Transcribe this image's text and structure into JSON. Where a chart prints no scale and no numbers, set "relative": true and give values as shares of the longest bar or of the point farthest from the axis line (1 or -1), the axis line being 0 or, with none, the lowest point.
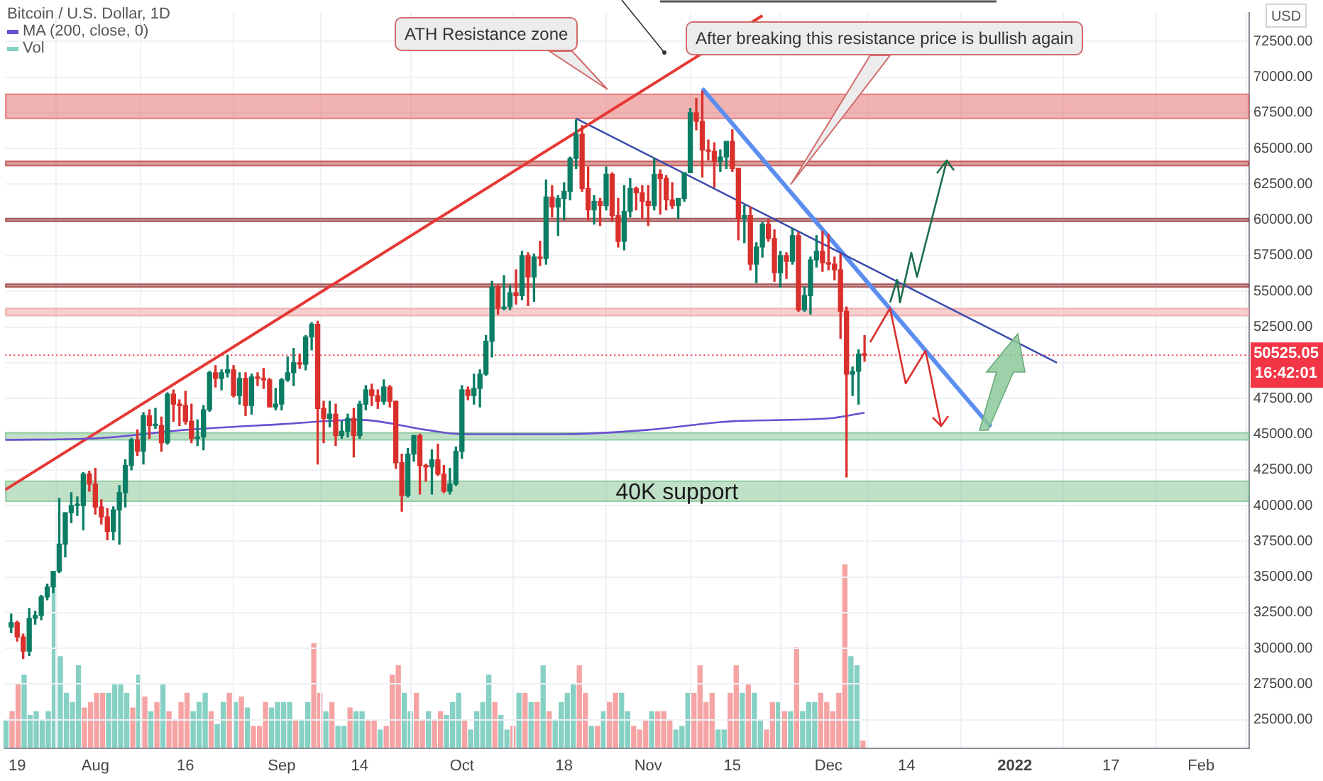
{
  "chart_data": [
    {
      "type": "candlestick",
      "title": "Bitcoin / U.S. Dollar, 1D",
      "ylabel": "USD",
      "x": [
        "2021-07-18",
        "2021-07-19",
        "2021-07-20",
        "2021-07-21",
        "2021-07-22",
        "2021-07-23",
        "2021-07-24",
        "2021-07-25",
        "2021-07-26",
        "2021-07-27",
        "2021-07-28",
        "2021-07-29",
        "2021-07-30",
        "2021-07-31",
        "2021-08-01",
        "2021-08-02",
        "2021-08-03",
        "2021-08-04",
        "2021-08-05",
        "2021-08-06",
        "2021-08-07",
        "2021-08-08",
        "2021-08-09",
        "2021-08-10",
        "2021-08-11",
        "2021-08-12",
        "2021-08-13",
        "2021-08-14",
        "2021-08-15",
        "2021-08-16",
        "2021-08-17",
        "2021-08-18",
        "2021-08-19",
        "2021-08-20",
        "2021-08-21",
        "2021-08-22",
        "2021-08-23",
        "2021-08-24",
        "2021-08-25",
        "2021-08-26",
        "2021-08-27",
        "2021-08-28",
        "2021-08-29",
        "2021-08-30",
        "2021-08-31",
        "2021-09-01",
        "2021-09-02",
        "2021-09-03",
        "2021-09-04",
        "2021-09-05",
        "2021-09-06",
        "2021-09-07",
        "2021-09-08",
        "2021-09-09",
        "2021-09-10",
        "2021-09-11",
        "2021-09-12",
        "2021-09-13",
        "2021-09-14",
        "2021-09-15",
        "2021-09-16",
        "2021-09-17",
        "2021-09-18",
        "2021-09-19",
        "2021-09-20",
        "2021-09-21",
        "2021-09-22",
        "2021-09-23",
        "2021-09-24",
        "2021-09-25",
        "2021-09-26",
        "2021-09-27",
        "2021-09-28",
        "2021-09-29",
        "2021-09-30",
        "2021-10-01",
        "2021-10-02",
        "2021-10-03",
        "2021-10-04",
        "2021-10-05",
        "2021-10-06",
        "2021-10-07",
        "2021-10-08",
        "2021-10-09",
        "2021-10-10",
        "2021-10-11",
        "2021-10-12",
        "2021-10-13",
        "2021-10-14",
        "2021-10-15",
        "2021-10-16",
        "2021-10-17",
        "2021-10-18",
        "2021-10-19",
        "2021-10-20",
        "2021-10-21",
        "2021-10-22",
        "2021-10-23",
        "2021-10-24",
        "2021-10-25",
        "2021-10-26",
        "2021-10-27",
        "2021-10-28",
        "2021-10-29",
        "2021-10-30",
        "2021-10-31",
        "2021-11-01",
        "2021-11-02",
        "2021-11-03",
        "2021-11-04",
        "2021-11-05",
        "2021-11-06",
        "2021-11-07",
        "2021-11-08",
        "2021-11-09",
        "2021-11-10",
        "2021-11-11",
        "2021-11-12",
        "2021-11-13",
        "2021-11-14",
        "2021-11-15",
        "2021-11-16",
        "2021-11-17",
        "2021-11-18",
        "2021-11-19",
        "2021-11-20",
        "2021-11-21",
        "2021-11-22",
        "2021-11-23",
        "2021-11-24",
        "2021-11-25",
        "2021-11-26",
        "2021-11-27",
        "2021-11-28",
        "2021-11-29",
        "2021-11-30",
        "2021-12-01",
        "2021-12-02",
        "2021-12-03",
        "2021-12-04",
        "2021-12-05",
        "2021-12-06",
        "2021-12-07"
      ],
      "ohlc": [
        [
          31500,
          32400,
          31100,
          31800
        ],
        [
          31800,
          31900,
          30500,
          30800
        ],
        [
          30800,
          31000,
          29300,
          29800
        ],
        [
          29800,
          32800,
          29500,
          32100
        ],
        [
          32100,
          32600,
          31700,
          32300
        ],
        [
          32300,
          33700,
          32000,
          33600
        ],
        [
          33600,
          34500,
          33400,
          34300
        ],
        [
          34300,
          35400,
          33900,
          35400
        ],
        [
          35400,
          40500,
          35300,
          37300
        ],
        [
          37300,
          39500,
          36400,
          39500
        ],
        [
          39500,
          40900,
          38800,
          40000
        ],
        [
          40000,
          40600,
          39300,
          40000
        ],
        [
          40000,
          42300,
          38300,
          42200
        ],
        [
          42200,
          42400,
          41000,
          41500
        ],
        [
          41500,
          42600,
          39400,
          39900
        ],
        [
          39900,
          40400,
          38700,
          39200
        ],
        [
          39200,
          39800,
          37600,
          38200
        ],
        [
          38200,
          39900,
          37600,
          39700
        ],
        [
          39700,
          41400,
          37300,
          40900
        ],
        [
          40900,
          43200,
          39900,
          42800
        ],
        [
          42800,
          44700,
          42500,
          44600
        ],
        [
          44600,
          45300,
          43500,
          43800
        ],
        [
          43800,
          46500,
          42900,
          46300
        ],
        [
          46300,
          46700,
          44700,
          45600
        ],
        [
          45600,
          46800,
          45400,
          45600
        ],
        [
          45600,
          46200,
          43800,
          44400
        ],
        [
          44400,
          47900,
          44300,
          47800
        ],
        [
          47800,
          48100,
          45900,
          47100
        ],
        [
          47100,
          47400,
          45600,
          47000
        ],
        [
          47000,
          48000,
          45700,
          45900
        ],
        [
          45900,
          47100,
          44400,
          44700
        ],
        [
          44700,
          46000,
          44200,
          44800
        ],
        [
          44800,
          47000,
          43900,
          46700
        ],
        [
          46700,
          49400,
          46600,
          49300
        ],
        [
          49300,
          49800,
          48300,
          48900
        ],
        [
          48900,
          49500,
          48100,
          49300
        ],
        [
          49300,
          50500,
          49000,
          49500
        ],
        [
          49500,
          49800,
          47600,
          47700
        ],
        [
          47700,
          49300,
          47100,
          48900
        ],
        [
          48900,
          49300,
          46300,
          47000
        ],
        [
          47000,
          49200,
          46400,
          49000
        ],
        [
          49000,
          49300,
          48400,
          48900
        ],
        [
          48900,
          49600,
          48200,
          48800
        ],
        [
          48800,
          48900,
          46900,
          46900
        ],
        [
          46900,
          48200,
          46700,
          47100
        ],
        [
          47100,
          48900,
          46700,
          48800
        ],
        [
          48800,
          50400,
          48700,
          49300
        ],
        [
          49300,
          51000,
          48400,
          50000
        ],
        [
          50000,
          50600,
          49600,
          49900
        ],
        [
          49900,
          51900,
          49500,
          51800
        ],
        [
          51800,
          52800,
          50900,
          52700
        ],
        [
          52700,
          52900,
          42900,
          46800
        ],
        [
          46800,
          47300,
          44400,
          46100
        ],
        [
          46100,
          47300,
          45500,
          46400
        ],
        [
          46400,
          47100,
          44200,
          44900
        ],
        [
          44900,
          45900,
          44700,
          45200
        ],
        [
          45200,
          46400,
          44800,
          46100
        ],
        [
          46100,
          46800,
          43400,
          44900
        ],
        [
          44900,
          47300,
          44700,
          47100
        ],
        [
          47100,
          48400,
          46700,
          48100
        ],
        [
          48100,
          48500,
          47000,
          47700
        ],
        [
          47700,
          48100,
          46800,
          47300
        ],
        [
          47300,
          48800,
          47100,
          48300
        ],
        [
          48300,
          48400,
          46900,
          47300
        ],
        [
          47300,
          47300,
          42600,
          43000
        ],
        [
          43000,
          43600,
          39600,
          40700
        ],
        [
          40700,
          44000,
          40600,
          43600
        ],
        [
          43600,
          44900,
          43100,
          44900
        ],
        [
          44900,
          45000,
          40800,
          42800
        ],
        [
          42800,
          42900,
          41700,
          42700
        ],
        [
          42700,
          43900,
          40800,
          43200
        ],
        [
          43200,
          44300,
          42100,
          42200
        ],
        [
          42200,
          42800,
          40900,
          41000
        ],
        [
          41000,
          42600,
          40800,
          41500
        ],
        [
          41500,
          44100,
          41400,
          43800
        ],
        [
          43800,
          48400,
          43300,
          48100
        ],
        [
          48100,
          48300,
          47400,
          47700
        ],
        [
          47700,
          49200,
          47100,
          48200
        ],
        [
          48200,
          49500,
          46900,
          49200
        ],
        [
          49200,
          51900,
          49100,
          51500
        ],
        [
          51500,
          55700,
          50400,
          55300
        ],
        [
          55300,
          55400,
          53400,
          53800
        ],
        [
          53800,
          56100,
          53700,
          53900
        ],
        [
          53900,
          55400,
          53700,
          54900
        ],
        [
          54900,
          56500,
          54100,
          54700
        ],
        [
          54700,
          57800,
          54400,
          57500
        ],
        [
          57500,
          57700,
          54000,
          56000
        ],
        [
          56000,
          57600,
          54300,
          57400
        ],
        [
          57400,
          58500,
          56800,
          57300
        ],
        [
          57300,
          62800,
          56900,
          61600
        ],
        [
          61600,
          62400,
          60200,
          60900
        ],
        [
          60900,
          61700,
          58900,
          61500
        ],
        [
          61500,
          62600,
          60000,
          62000
        ],
        [
          62000,
          64400,
          61400,
          64300
        ],
        [
          64300,
          67000,
          63600,
          66000
        ],
        [
          66000,
          66600,
          62000,
          62200
        ],
        [
          62200,
          63700,
          60000,
          60700
        ],
        [
          60700,
          61700,
          59700,
          61300
        ],
        [
          61300,
          61500,
          59600,
          61000
        ],
        [
          61000,
          63700,
          60700,
          63200
        ],
        [
          63200,
          63300,
          59900,
          60300
        ],
        [
          60300,
          61500,
          58100,
          58500
        ],
        [
          58500,
          62400,
          57900,
          60600
        ],
        [
          60600,
          62900,
          60200,
          62200
        ],
        [
          62200,
          62300,
          60700,
          61900
        ],
        [
          61900,
          62400,
          60100,
          61300
        ],
        [
          61300,
          62400,
          59600,
          61000
        ],
        [
          61000,
          64300,
          60700,
          63200
        ],
        [
          63200,
          63500,
          60400,
          62900
        ],
        [
          62900,
          63100,
          60700,
          61400
        ],
        [
          61400,
          62600,
          60800,
          61000
        ],
        [
          61000,
          61500,
          60100,
          61500
        ],
        [
          61500,
          63300,
          61300,
          63300
        ],
        [
          63300,
          67800,
          63300,
          67500
        ],
        [
          67500,
          68500,
          66300,
          66900
        ],
        [
          66900,
          69000,
          63000,
          64900
        ],
        [
          64900,
          65600,
          64200,
          64800
        ],
        [
          64800,
          65400,
          62300,
          64100
        ],
        [
          64100,
          64900,
          63400,
          64400
        ],
        [
          64400,
          65500,
          63600,
          65500
        ],
        [
          65500,
          66300,
          63400,
          63600
        ],
        [
          63600,
          63600,
          58600,
          60100
        ],
        [
          60100,
          61000,
          58400,
          60300
        ],
        [
          60300,
          60900,
          56500,
          56900
        ],
        [
          56900,
          58400,
          55600,
          58100
        ],
        [
          58100,
          59800,
          57400,
          59700
        ],
        [
          59700,
          60000,
          58500,
          58700
        ],
        [
          58700,
          59300,
          55700,
          56300
        ],
        [
          56300,
          57800,
          55300,
          57500
        ],
        [
          57500,
          57700,
          55900,
          57100
        ],
        [
          57100,
          59400,
          56900,
          58900
        ],
        [
          58900,
          59100,
          53600,
          53700
        ],
        [
          53700,
          55300,
          53600,
          54700
        ],
        [
          54700,
          57400,
          53400,
          57200
        ],
        [
          57200,
          58900,
          56700,
          57800
        ],
        [
          57800,
          59200,
          56400,
          57000
        ],
        [
          57000,
          59000,
          56500,
          56900
        ],
        [
          56900,
          57400,
          55800,
          56500
        ],
        [
          56500,
          57600,
          51700,
          53600
        ],
        [
          53600,
          53900,
          42000,
          49200
        ],
        [
          49200,
          49700,
          47700,
          49400
        ],
        [
          49400,
          50900,
          47100,
          50600
        ],
        [
          50600,
          51900,
          50100,
          50525.05
        ]
      ],
      "colors": [
        "#0b7d64",
        "#d9302c",
        "#d9302c",
        "#0b7d64",
        "#0b7d64",
        "#0b7d64",
        "#0b7d64",
        "#0b7d64",
        "#0b7d64",
        "#0b7d64",
        "#0b7d64",
        "#0b7d64",
        "#0b7d64",
        "#d9302c",
        "#d9302c",
        "#d9302c",
        "#d9302c",
        "#0b7d64",
        "#0b7d64",
        "#0b7d64",
        "#0b7d64",
        "#d9302c",
        "#0b7d64",
        "#d9302c",
        "#0b7d64",
        "#d9302c",
        "#0b7d64",
        "#d9302c",
        "#d9302c",
        "#d9302c",
        "#d9302c",
        "#0b7d64",
        "#0b7d64",
        "#0b7d64",
        "#d9302c",
        "#0b7d64",
        "#0b7d64",
        "#d9302c",
        "#0b7d64",
        "#d9302c",
        "#0b7d64",
        "#d9302c",
        "#d9302c",
        "#d9302c",
        "#0b7d64",
        "#0b7d64",
        "#0b7d64",
        "#0b7d64",
        "#d9302c",
        "#0b7d64",
        "#0b7d64",
        "#d9302c",
        "#d9302c",
        "#0b7d64",
        "#d9302c",
        "#0b7d64",
        "#0b7d64",
        "#d9302c",
        "#0b7d64",
        "#0b7d64",
        "#d9302c",
        "#d9302c",
        "#0b7d64",
        "#d9302c",
        "#d9302c",
        "#d9302c",
        "#0b7d64",
        "#0b7d64",
        "#d9302c",
        "#d9302c",
        "#0b7d64",
        "#d9302c",
        "#d9302c",
        "#0b7d64",
        "#0b7d64",
        "#0b7d64",
        "#d9302c",
        "#0b7d64",
        "#0b7d64",
        "#0b7d64",
        "#0b7d64",
        "#d9302c",
        "#0b7d64",
        "#0b7d64",
        "#d9302c",
        "#0b7d64",
        "#d9302c",
        "#0b7d64",
        "#d9302c",
        "#0b7d64",
        "#d9302c",
        "#0b7d64",
        "#0b7d64",
        "#0b7d64",
        "#0b7d64",
        "#d9302c",
        "#d9302c",
        "#0b7d64",
        "#d9302c",
        "#0b7d64",
        "#d9302c",
        "#d9302c",
        "#0b7d64",
        "#0b7d64",
        "#d9302c",
        "#d9302c",
        "#d9302c",
        "#0b7d64",
        "#d9302c",
        "#d9302c",
        "#d9302c",
        "#0b7d64",
        "#0b7d64",
        "#0b7d64",
        "#d9302c",
        "#d9302c",
        "#d9302c",
        "#d9302c",
        "#0b7d64",
        "#0b7d64",
        "#d9302c",
        "#d9302c",
        "#0b7d64",
        "#d9302c",
        "#0b7d64",
        "#0b7d64",
        "#d9302c",
        "#d9302c",
        "#0b7d64",
        "#d9302c",
        "#0b7d64",
        "#d9302c",
        "#0b7d64",
        "#0b7d64",
        "#0b7d64",
        "#d9302c",
        "#d9302c",
        "#d9302c",
        "#d9302c",
        "#d9302c",
        "#0b7d64",
        "#0b7d64",
        "#d9302c"
      ],
      "series": [
        {
          "name": "MA (200, close, 0)",
          "type": "line",
          "color": "#6a4fd1",
          "x": [
            "2021-07-17",
            "2021-08-01",
            "2021-08-16",
            "2021-09-01",
            "2021-09-14",
            "2021-09-25",
            "2021-10-01",
            "2021-10-18",
            "2021-11-01",
            "2021-11-15",
            "2021-12-01",
            "2021-12-07"
          ],
          "values": [
            44600,
            44700,
            45300,
            45700,
            46000,
            45300,
            45000,
            45000,
            45300,
            45900,
            46100,
            46500
          ]
        },
        {
          "type": "line",
          "color": "#e53935",
          "x": [
            "2021-07-17",
            "2021-11-20"
          ],
          "values": [
            41100,
            74300
          ]
        },
        {
          "type": "line",
          "color": "#3949ab",
          "x": [
            "2021-10-20",
            "2022-01-08"
          ],
          "values": [
            67100,
            50000
          ]
        },
        {
          "type": "line",
          "color": "#5c8ef0",
          "x": [
            "2021-11-10",
            "2021-12-28"
          ],
          "values": [
            69200,
            45500
          ]
        }
      ],
      "xlim": [
        "2021-07-17",
        "2022-02-09"
      ],
      "xticks": [
        {
          "value": "2021-07-19",
          "label": "19"
        },
        {
          "value": "2021-08-01",
          "label": "Aug"
        },
        {
          "value": "2021-08-16",
          "label": "16"
        },
        {
          "value": "2021-09-01",
          "label": "Sep"
        },
        {
          "value": "2021-09-14",
          "label": "14"
        },
        {
          "value": "2021-10-01",
          "label": "Oct"
        },
        {
          "value": "2021-10-18",
          "label": "18"
        },
        {
          "value": "2021-11-01",
          "label": "Nov"
        },
        {
          "value": "2021-11-15",
          "label": "15"
        },
        {
          "value": "2021-12-01",
          "label": "Dec"
        },
        {
          "value": "2021-12-14",
          "label": "14"
        },
        {
          "value": "2022-01-01",
          "label": "2022"
        },
        {
          "value": "2022-01-17",
          "label": "17"
        },
        {
          "value": "2022-02-01",
          "label": "Feb"
        }
      ],
      "ylim": [
        23000,
        74500
      ],
      "yticks": [
        {
          "value": 25000,
          "label": "25000.00"
        },
        {
          "value": 27500,
          "label": "27500.00"
        },
        {
          "value": 30000,
          "label": "30000.00"
        },
        {
          "value": 32500,
          "label": "32500.00"
        },
        {
          "value": 35000,
          "label": "35000.00"
        },
        {
          "value": 37500,
          "label": "37500.00"
        },
        {
          "value": 40000,
          "label": "40000.00"
        },
        {
          "value": 42500,
          "label": "42500.00"
        },
        {
          "value": 45000,
          "label": "45000.00"
        },
        {
          "value": 47500,
          "label": "47500.00"
        },
        {
          "value": 50000,
          "label": null
        },
        {
          "value": 52500,
          "label": "52500.00"
        },
        {
          "value": 55000,
          "label": "55000.00"
        },
        {
          "value": 57500,
          "label": "57500.00"
        },
        {
          "value": 60000,
          "label": "60000.00"
        },
        {
          "value": 62500,
          "label": "62500.00"
        },
        {
          "value": 65000,
          "label": "65000.00"
        },
        {
          "value": 67500,
          "label": "67500.00"
        },
        {
          "value": 70000,
          "label": "70000.00"
        },
        {
          "value": 72500,
          "label": "72500.00"
        }
      ],
      "grid": true,
      "legend": "top left",
      "bands": [
        {
          "axis": "y",
          "from": 67100,
          "to": 68800,
          "color": "#e57373"
        },
        {
          "axis": "y",
          "from": 63800,
          "to": 64100,
          "color": "#c0504d"
        },
        {
          "axis": "y",
          "from": 59900,
          "to": 60100,
          "color": "#a04848"
        },
        {
          "axis": "y",
          "from": 55300,
          "to": 55500,
          "color": "#a04848"
        },
        {
          "axis": "y",
          "from": 53300,
          "to": 53800,
          "color": "#f0a8a8"
        },
        {
          "axis": "y",
          "from": 44600,
          "to": 45100,
          "color": "#8cc99a"
        },
        {
          "axis": "y",
          "from": 40300,
          "to": 41700,
          "color": "#8cc99a",
          "label": "40K support"
        }
      ],
      "ref_lines": [
        {
          "axis": "y",
          "value": 50525.05,
          "label": "50525.05\n16:42:01",
          "color": "#f23645",
          "line_style": "dotted"
        }
      ],
      "annotations": [
        "ATH Resistance zone",
        "After breaking this resistance price is bullish again"
      ]
    },
    {
      "type": "bar",
      "relative": true,
      "legend": "top left",
      "tick_labels": false,
      "categories": [
        null,
        null,
        null,
        null,
        null,
        null,
        null,
        null,
        null,
        null,
        null,
        null,
        null,
        null,
        null,
        null,
        null,
        null,
        null,
        null,
        null,
        null,
        null,
        null,
        null,
        null,
        null,
        null,
        null,
        null,
        null,
        null,
        null,
        null,
        null,
        null,
        null,
        null,
        null,
        null,
        null,
        null,
        null,
        null,
        null,
        null,
        null,
        null,
        null,
        null,
        null,
        null,
        null,
        null,
        null,
        null,
        null,
        null,
        null,
        null,
        null,
        null,
        null,
        null,
        null,
        null,
        null,
        null,
        null,
        null,
        null,
        null,
        null,
        null,
        null,
        null,
        null,
        null,
        null,
        null,
        null,
        null,
        null,
        null,
        null,
        null,
        null,
        null,
        null,
        null,
        null,
        null,
        null,
        null,
        null,
        null,
        null,
        null,
        null,
        null,
        null,
        null,
        null,
        null,
        null,
        null,
        null,
        null,
        null,
        null,
        null,
        null,
        null,
        null,
        null,
        null,
        null,
        null,
        null,
        null,
        null,
        null,
        null,
        null,
        null,
        null,
        null,
        null,
        null,
        null,
        null,
        null,
        null,
        null,
        null,
        null,
        null,
        null,
        null,
        null,
        null,
        null,
        null
      ],
      "series": [
        {
          "name": "Vol",
          "values": [
            0.15,
            0.2,
            0.35,
            0.4,
            0.18,
            0.2,
            0.15,
            0.2,
            0.88,
            0.5,
            0.3,
            0.25,
            0.45,
            0.22,
            0.25,
            0.3,
            0.3,
            0.3,
            0.35,
            0.35,
            0.3,
            0.22,
            0.4,
            0.28,
            0.2,
            0.25,
            0.35,
            0.2,
            0.15,
            0.25,
            0.3,
            0.2,
            0.25,
            0.3,
            0.2,
            0.13,
            0.25,
            0.3,
            0.25,
            0.28,
            0.22,
            0.12,
            0.12,
            0.25,
            0.22,
            0.25,
            0.25,
            0.25,
            0.15,
            0.15,
            0.25,
            0.57,
            0.3,
            0.2,
            0.25,
            0.12,
            0.12,
            0.22,
            0.2,
            0.2,
            0.15,
            0.15,
            0.1,
            0.12,
            0.4,
            0.45,
            0.3,
            0.2,
            0.3,
            0.15,
            0.2,
            0.15,
            0.2,
            0.18,
            0.25,
            0.3,
            0.15,
            0.1,
            0.2,
            0.25,
            0.4,
            0.25,
            0.18,
            0.1,
            0.12,
            0.3,
            0.3,
            0.25,
            0.25,
            0.45,
            0.2,
            0.15,
            0.25,
            0.3,
            0.35,
            0.45,
            0.3,
            0.12,
            0.12,
            0.2,
            0.25,
            0.3,
            0.3,
            0.2,
            0.12,
            0.1,
            0.15,
            0.2,
            0.2,
            0.2,
            0.15,
            0.1,
            0.12,
            0.3,
            0.3,
            0.45,
            0.25,
            0.3,
            0.1,
            0.1,
            0.3,
            0.45,
            0.3,
            0.35,
            0.3,
            0.15,
            0.1,
            0.25,
            0.25,
            0.2,
            0.2,
            0.55,
            0.2,
            0.25,
            0.25,
            0.3,
            0.25,
            0.2,
            0.3,
            1,
            0.5,
            0.45,
            0.04
          ],
          "colors": [
            "#86d0c4",
            "#f5a3a3",
            "#f5a3a3",
            "#86d0c4",
            "#86d0c4",
            "#86d0c4",
            "#86d0c4",
            "#86d0c4",
            "#86d0c4",
            "#86d0c4",
            "#86d0c4",
            "#86d0c4",
            "#86d0c4",
            "#f5a3a3",
            "#f5a3a3",
            "#f5a3a3",
            "#f5a3a3",
            "#86d0c4",
            "#86d0c4",
            "#86d0c4",
            "#86d0c4",
            "#f5a3a3",
            "#86d0c4",
            "#f5a3a3",
            "#86d0c4",
            "#f5a3a3",
            "#86d0c4",
            "#f5a3a3",
            "#f5a3a3",
            "#f5a3a3",
            "#f5a3a3",
            "#86d0c4",
            "#86d0c4",
            "#86d0c4",
            "#f5a3a3",
            "#86d0c4",
            "#86d0c4",
            "#f5a3a3",
            "#86d0c4",
            "#f5a3a3",
            "#86d0c4",
            "#f5a3a3",
            "#f5a3a3",
            "#f5a3a3",
            "#86d0c4",
            "#86d0c4",
            "#86d0c4",
            "#86d0c4",
            "#f5a3a3",
            "#86d0c4",
            "#86d0c4",
            "#f5a3a3",
            "#f5a3a3",
            "#86d0c4",
            "#f5a3a3",
            "#86d0c4",
            "#86d0c4",
            "#f5a3a3",
            "#86d0c4",
            "#86d0c4",
            "#f5a3a3",
            "#f5a3a3",
            "#86d0c4",
            "#f5a3a3",
            "#f5a3a3",
            "#f5a3a3",
            "#86d0c4",
            "#86d0c4",
            "#f5a3a3",
            "#f5a3a3",
            "#86d0c4",
            "#f5a3a3",
            "#f5a3a3",
            "#86d0c4",
            "#86d0c4",
            "#86d0c4",
            "#f5a3a3",
            "#86d0c4",
            "#86d0c4",
            "#86d0c4",
            "#86d0c4",
            "#f5a3a3",
            "#86d0c4",
            "#86d0c4",
            "#f5a3a3",
            "#86d0c4",
            "#f5a3a3",
            "#86d0c4",
            "#f5a3a3",
            "#86d0c4",
            "#f5a3a3",
            "#86d0c4",
            "#86d0c4",
            "#86d0c4",
            "#86d0c4",
            "#f5a3a3",
            "#f5a3a3",
            "#86d0c4",
            "#f5a3a3",
            "#86d0c4",
            "#f5a3a3",
            "#f5a3a3",
            "#86d0c4",
            "#86d0c4",
            "#f5a3a3",
            "#f5a3a3",
            "#f5a3a3",
            "#86d0c4",
            "#f5a3a3",
            "#f5a3a3",
            "#f5a3a3",
            "#86d0c4",
            "#86d0c4",
            "#86d0c4",
            "#f5a3a3",
            "#f5a3a3",
            "#f5a3a3",
            "#f5a3a3",
            "#86d0c4",
            "#86d0c4",
            "#f5a3a3",
            "#f5a3a3",
            "#86d0c4",
            "#f5a3a3",
            "#86d0c4",
            "#86d0c4",
            "#f5a3a3",
            "#f5a3a3",
            "#86d0c4",
            "#f5a3a3",
            "#86d0c4",
            "#f5a3a3",
            "#86d0c4",
            "#86d0c4",
            "#86d0c4",
            "#f5a3a3",
            "#f5a3a3",
            "#f5a3a3",
            "#f5a3a3",
            "#f5a3a3",
            "#86d0c4",
            "#86d0c4",
            "#f5a3a3"
          ]
        }
      ]
    }
  ]
}
